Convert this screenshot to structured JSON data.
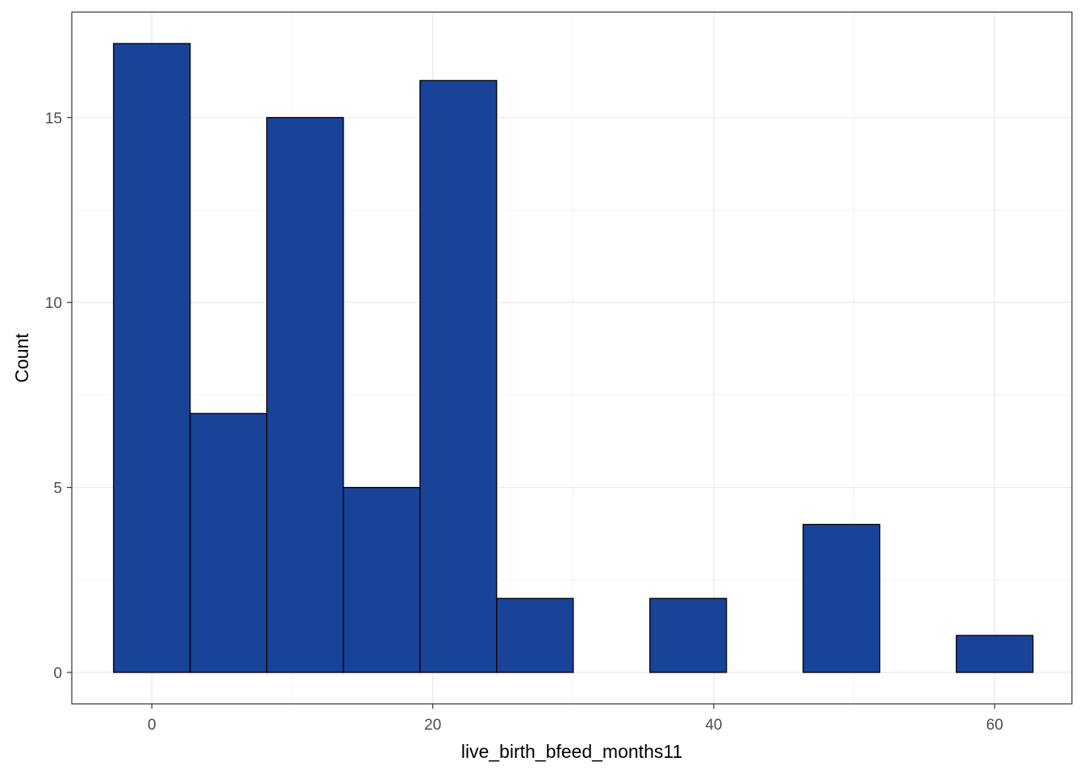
{
  "chart_data": {
    "type": "bar",
    "subtype": "histogram",
    "xlabel": "live_birth_bfeed_months11",
    "ylabel": "Count",
    "bin_width": 5.4545,
    "bins": [
      {
        "center": 0.0,
        "count": 17
      },
      {
        "center": 5.4545,
        "count": 7
      },
      {
        "center": 10.909,
        "count": 15
      },
      {
        "center": 16.364,
        "count": 5
      },
      {
        "center": 21.818,
        "count": 16
      },
      {
        "center": 27.273,
        "count": 2
      },
      {
        "center": 32.727,
        "count": 0
      },
      {
        "center": 38.182,
        "count": 2
      },
      {
        "center": 43.636,
        "count": 0
      },
      {
        "center": 49.091,
        "count": 4
      },
      {
        "center": 54.545,
        "count": 0
      },
      {
        "center": 60.0,
        "count": 1
      }
    ],
    "xlim": [
      -5.7,
      65.5
    ],
    "ylim": [
      -0.85,
      17.85
    ],
    "x_ticks": [
      0,
      20,
      40,
      60
    ],
    "x_tick_labels": [
      "0",
      "20",
      "40",
      "60"
    ],
    "y_ticks": [
      0,
      5,
      10,
      15
    ],
    "y_tick_labels": [
      "0",
      "5",
      "10",
      "15"
    ],
    "x_minor_breaks": [
      10,
      30,
      50
    ],
    "y_minor_breaks": [
      2.5,
      7.5,
      12.5
    ],
    "grid": true,
    "theme": "bw",
    "colors": {
      "bar_fill": "#184399",
      "bar_outline": "#000000",
      "grid_major": "#ebebeb",
      "grid_minor": "#f2f2f2",
      "panel_border": "#333333",
      "tick_text": "#4d4d4d"
    }
  }
}
